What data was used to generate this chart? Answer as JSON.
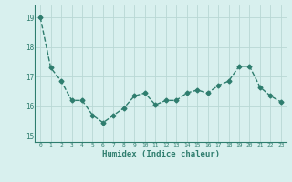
{
  "x": [
    0,
    1,
    2,
    3,
    4,
    5,
    6,
    7,
    8,
    9,
    10,
    11,
    12,
    13,
    14,
    15,
    16,
    17,
    18,
    19,
    20,
    21,
    22,
    23
  ],
  "y": [
    19.0,
    17.3,
    16.85,
    16.2,
    16.2,
    15.7,
    15.45,
    15.7,
    15.95,
    16.35,
    16.45,
    16.05,
    16.2,
    16.2,
    16.45,
    16.55,
    16.45,
    16.7,
    16.85,
    17.35,
    17.35,
    16.65,
    16.35,
    16.15
  ],
  "xlabel": "Humidex (Indice chaleur)",
  "ylim": [
    14.8,
    19.4
  ],
  "yticks": [
    15,
    16,
    17,
    18,
    19
  ],
  "xticks": [
    0,
    1,
    2,
    3,
    4,
    5,
    6,
    7,
    8,
    9,
    10,
    11,
    12,
    13,
    14,
    15,
    16,
    17,
    18,
    19,
    20,
    21,
    22,
    23
  ],
  "line_color": "#2e7d6e",
  "marker": "D",
  "marker_size": 2.5,
  "bg_color": "#d8f0ee",
  "grid_color": "#b8d8d4",
  "label_color": "#2e7d6e",
  "tick_color": "#2e7d6e",
  "line_width": 1.0
}
